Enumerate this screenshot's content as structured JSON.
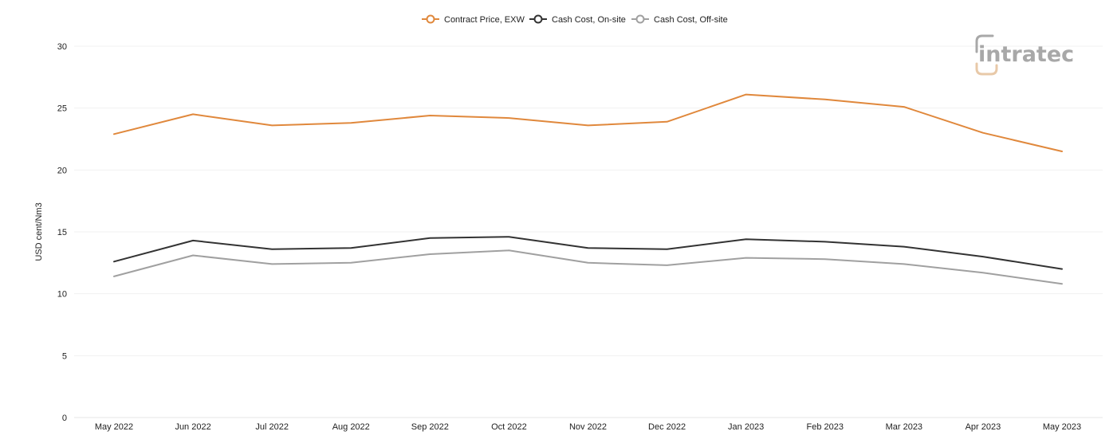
{
  "chart_data": {
    "type": "line",
    "title": "",
    "xlabel": "",
    "ylabel": "USD cent/Nm3",
    "ylim": [
      0,
      30
    ],
    "yticks": [
      0,
      5,
      10,
      15,
      20,
      25,
      30
    ],
    "grid": true,
    "legend_position": "top-center",
    "categories": [
      "May 2022",
      "Jun 2022",
      "Jul 2022",
      "Aug 2022",
      "Sep 2022",
      "Oct 2022",
      "Nov 2022",
      "Dec 2022",
      "Jan 2023",
      "Feb 2023",
      "Mar 2023",
      "Apr 2023",
      "May 2023"
    ],
    "series": [
      {
        "name": "Contract Price, EXW",
        "color": "#e0883c",
        "values": [
          22.9,
          24.5,
          23.6,
          23.8,
          24.4,
          24.2,
          23.6,
          23.9,
          26.1,
          25.7,
          25.1,
          23.0,
          21.5
        ]
      },
      {
        "name": "Cash Cost, On-site",
        "color": "#333333",
        "values": [
          12.6,
          14.3,
          13.6,
          13.7,
          14.5,
          14.6,
          13.7,
          13.6,
          14.4,
          14.2,
          13.8,
          13.0,
          12.0
        ]
      },
      {
        "name": "Cash Cost, Off-site",
        "color": "#a0a0a0",
        "values": [
          11.4,
          13.1,
          12.4,
          12.5,
          13.2,
          13.5,
          12.5,
          12.3,
          12.9,
          12.8,
          12.4,
          11.7,
          10.8
        ]
      }
    ]
  },
  "logo": {
    "text": "intratec",
    "color": "#a8a8a8",
    "accent_color": "#e8c9a8"
  }
}
